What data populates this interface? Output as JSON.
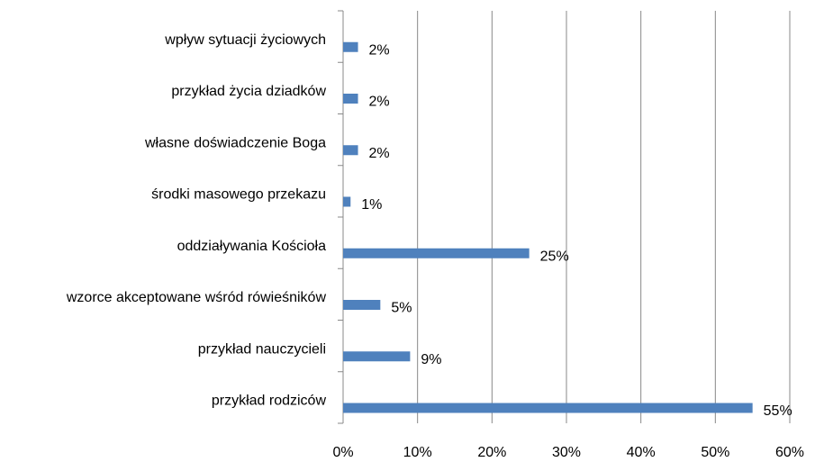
{
  "chart_data": {
    "type": "bar",
    "orientation": "horizontal",
    "categories": [
      "wpływ sytuacji życiowych",
      "przykład życia dziadków",
      "własne doświadczenie Boga",
      "środki masowego przekazu",
      "oddziaływania Kościoła",
      "wzorce akceptowane wśród rówieśników",
      "przykład nauczycieli",
      "przykład rodziców"
    ],
    "values": [
      2,
      2,
      2,
      1,
      25,
      5,
      9,
      55
    ],
    "value_labels": [
      "2%",
      "2%",
      "2%",
      "1%",
      "25%",
      "5%",
      "9%",
      "55%"
    ],
    "color": "#4f81bd",
    "xlim": [
      0,
      60
    ],
    "xticks": [
      {
        "value": 0,
        "label": "0%"
      },
      {
        "value": 10,
        "label": "10%"
      },
      {
        "value": 20,
        "label": "20%"
      },
      {
        "value": 30,
        "label": "30%"
      },
      {
        "value": 40,
        "label": "40%"
      },
      {
        "value": 50,
        "label": "50%"
      },
      {
        "value": 60,
        "label": "60%"
      }
    ],
    "grid": true
  }
}
